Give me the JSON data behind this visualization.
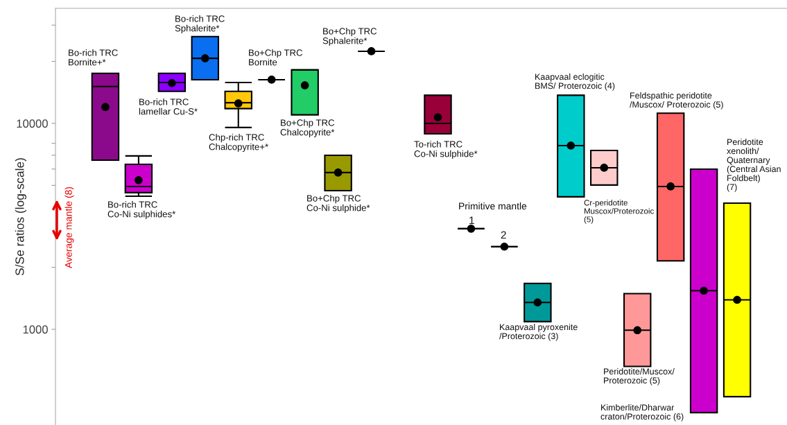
{
  "chart_data": {
    "type": "box",
    "ylabel": "S/Se ratios (log-scale)",
    "log": "y",
    "grid": false,
    "tick_labels": "y",
    "categories": [
      null,
      null,
      null,
      null,
      null,
      null,
      null,
      null,
      null,
      null,
      null,
      null,
      null,
      null,
      null,
      null,
      null,
      null,
      null,
      null,
      null,
      null
    ],
    "boxes": [
      null,
      {
        "low": 6630,
        "q1": 6630,
        "median": 15100,
        "q3": 17500,
        "high": 17500,
        "mean": 12000
      },
      {
        "low": 4430,
        "q1": 4610,
        "median": 4940,
        "q3": 6330,
        "high": 6950,
        "mean": 5300
      },
      {
        "low": 14300,
        "q1": 14300,
        "median": 15800,
        "q3": 17500,
        "high": 17500,
        "mean": 15700
      },
      {
        "low": 16300,
        "q1": 16300,
        "median": 20700,
        "q3": 26400,
        "high": 26400,
        "mean": 20700
      },
      {
        "low": 9550,
        "q1": 11800,
        "median": 12600,
        "q3": 14300,
        "high": 15800,
        "mean": 12500
      },
      {
        "low": 16300,
        "q1": 16300,
        "median": 16300,
        "q3": 16300,
        "high": 16300,
        "mean": 16300
      },
      {
        "low": 11000,
        "q1": 11000,
        "median": 18200,
        "q3": 18200,
        "high": 18200,
        "mean": 15300
      },
      {
        "low": 4710,
        "q1": 4710,
        "median": 5770,
        "q3": 7000,
        "high": 7000,
        "mean": 5770
      },
      {
        "low": 22400,
        "q1": 22400,
        "median": 22400,
        "q3": 22400,
        "high": 22400,
        "mean": 22400
      },
      null,
      {
        "low": 8900,
        "q1": 8900,
        "median": 10000,
        "q3": 13700,
        "high": 13700,
        "mean": 10700
      },
      {
        "low": 3080,
        "q1": 3080,
        "median": 3080,
        "q3": 3080,
        "high": 3080,
        "mean": 3080
      },
      {
        "low": 2520,
        "q1": 2520,
        "median": 2520,
        "q3": 2520,
        "high": 2520,
        "mean": 2520
      },
      {
        "low": 1090,
        "q1": 1090,
        "median": 1350,
        "q3": 1670,
        "high": 1670,
        "mean": 1350
      },
      {
        "low": 4400,
        "q1": 4400,
        "median": 7800,
        "q3": 13700,
        "high": 13700,
        "mean": 7800
      },
      {
        "low": 5020,
        "q1": 5020,
        "median": 6090,
        "q3": 7390,
        "high": 7390,
        "mean": 6090
      },
      {
        "low": 660,
        "q1": 660,
        "median": 990,
        "q3": 1490,
        "high": 1490,
        "mean": 990
      },
      {
        "low": 2150,
        "q1": 2150,
        "median": 4940,
        "q3": 11200,
        "high": 11200,
        "mean": 4940
      },
      {
        "low": 394,
        "q1": 394,
        "median": 1540,
        "q3": 5990,
        "high": 5990,
        "mean": 1540
      },
      {
        "low": 471,
        "q1": 471,
        "median": 1390,
        "q3": 4100,
        "high": 4100,
        "mean": 1390
      },
      null
    ],
    "colors": [
      null,
      "#8b0a8b",
      "#cc00cc",
      "#8b00ff",
      "#0a6ef0",
      "#ffc80a",
      null,
      "#22cc66",
      "#999900",
      null,
      null,
      "#99003a",
      null,
      null,
      "#009999",
      "#00cccc",
      "#ffcccc",
      "#ff9999",
      "#ff6666",
      "#cc00cc",
      "#ffff00",
      null
    ],
    "ylim": [
      343,
      36200
    ],
    "yticks": [
      1000,
      {
        "value": 2000,
        "label": null
      },
      {
        "value": 5000,
        "label": null
      },
      {
        "value": 6000,
        "label": null
      },
      {
        "value": 7000,
        "label": null
      },
      {
        "value": 8000,
        "label": null
      },
      10000,
      {
        "value": 20000,
        "label": null
      },
      {
        "value": 30000,
        "label": null
      }
    ],
    "annotations": [
      "Bo-rich TRC\nBornite+*",
      "Bo-rich TRC\nCo-Ni sulphides*",
      "Bo-rich TRC\nlamellar Cu-S*",
      "Bo-rich TRC\nSphalerite*",
      "Chp-rich TRC\nChalcopyrite+*",
      "Bo+Chp TRC\nBornite",
      "Bo+Chp TRC\nChalcopyrite*",
      "Bo+Chp TRC\nSphalerite*",
      "Bo+Chp TRC\nCo-Ni sulphide*",
      "To-rich TRC\nCo-Ni sulphide*",
      "Primitive mantle",
      "1",
      "2",
      "Kaapvaal eclogitic\nBMS/ Proterozoic (4)",
      "Cr-peridotite\nMuscox/Proterozoic\n(5)",
      "Feldspathic peridotite\n/Muscox/ Proterozoic (5)",
      "Kaapvaal pyroxenite\n/Proterozoic (3)",
      "Peridotite/Muscox/\nProterozoic (5)",
      "Peridotite\nxenolith/\nQuaternary\n(Central Asian\nFoldbelt)\n(7)",
      "Kimberlite/Dharwar\ncraton/Proterozoic (6)",
      "Average mantle (8)"
    ]
  }
}
